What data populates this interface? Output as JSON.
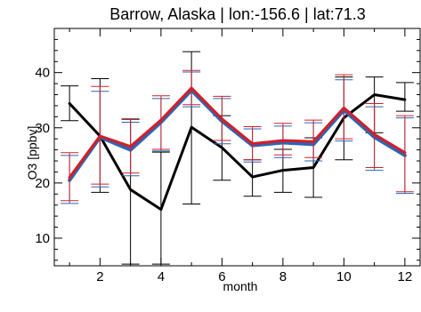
{
  "chart_data": {
    "type": "line",
    "title": "Barrow, Alaska | lon:-156.6 | lat:71.3",
    "xlabel": "month",
    "ylabel": "O3 [ppbv]",
    "xlim": [
      0.5,
      12.5
    ],
    "ylim": [
      5,
      48
    ],
    "x_ticks": [
      2,
      4,
      6,
      8,
      10,
      12
    ],
    "y_ticks": [
      10,
      20,
      30,
      40
    ],
    "grid": false,
    "legend": "none",
    "x": [
      1,
      2,
      3,
      4,
      5,
      6,
      7,
      8,
      9,
      10,
      11,
      12
    ],
    "series": [
      {
        "color": "#000000",
        "values": [
          34.4,
          28.5,
          18.8,
          15.2,
          30.1,
          26.4,
          21.1,
          22.3,
          22.8,
          31.8,
          36.0,
          35.1
        ],
        "err_low": [
          31.3,
          18.3,
          5.3,
          5.3,
          16.2,
          20.5,
          17.6,
          18.3,
          17.4,
          24.2,
          29.1,
          33.0
        ],
        "err_high": [
          37.6,
          38.9,
          31.6,
          25.6,
          43.8,
          32.2,
          24.2,
          26.1,
          28.2,
          39.2,
          39.2,
          38.2
        ]
      },
      {
        "color": "#2a66b8",
        "values": [
          20.5,
          28.3,
          26.0,
          31.0,
          36.8,
          31.2,
          26.8,
          27.3,
          27.0,
          33.2,
          28.3,
          25.0
        ],
        "err_low": [
          16.3,
          19.3,
          21.3,
          25.8,
          33.8,
          27.1,
          23.8,
          24.6,
          24.0,
          27.6,
          22.3,
          18.1
        ],
        "err_high": [
          25.0,
          36.6,
          31.0,
          35.3,
          40.1,
          35.3,
          29.8,
          30.3,
          30.9,
          38.7,
          33.8,
          31.8
        ]
      },
      {
        "color": "#d0202a",
        "values": [
          21.0,
          28.5,
          26.6,
          31.4,
          37.2,
          31.6,
          27.1,
          27.7,
          27.5,
          33.6,
          28.8,
          25.5
        ],
        "err_low": [
          16.8,
          19.8,
          21.8,
          26.1,
          34.2,
          27.7,
          24.2,
          25.1,
          24.6,
          28.0,
          22.8,
          18.4
        ],
        "err_high": [
          25.5,
          37.5,
          31.5,
          35.8,
          40.4,
          35.7,
          30.2,
          30.8,
          31.4,
          39.6,
          34.4,
          32.2
        ]
      }
    ]
  }
}
